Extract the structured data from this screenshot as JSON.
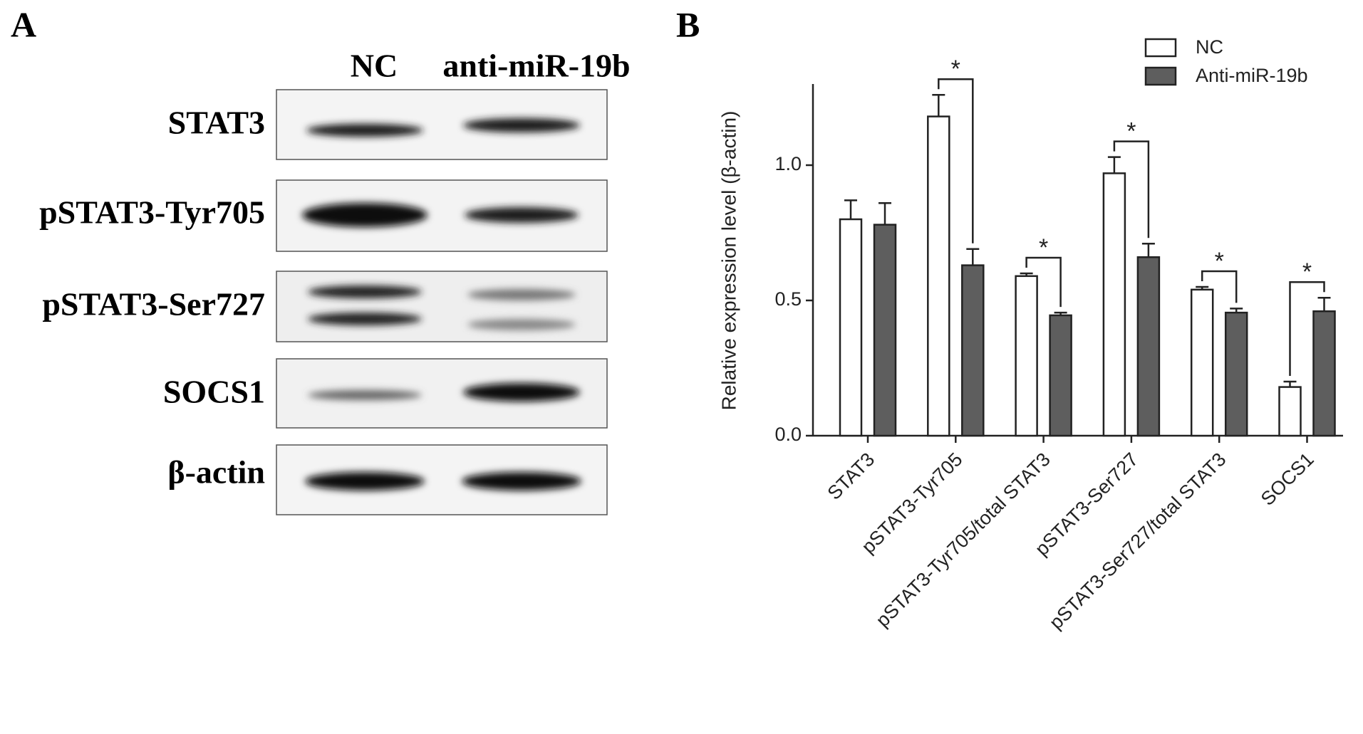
{
  "panel_a": {
    "label": "A",
    "lanes": [
      "NC",
      "anti-miR-19b"
    ],
    "rows": [
      "STAT3",
      "pSTAT3-Tyr705",
      "pSTAT3-Ser727",
      "SOCS1",
      "β-actin"
    ]
  },
  "chart_data": {
    "type": "bar",
    "panel_label": "B",
    "y_label": "Relative expression level (β-actin)",
    "categories": [
      "STAT3",
      "pSTAT3-Tyr705",
      "pSTAT3-Tyr705/total STAT3",
      "pSTAT3-Ser727",
      "pSTAT3-Ser727/total STAT3",
      "SOCS1"
    ],
    "series": [
      {
        "name": "NC",
        "color": "#ffffff",
        "values": [
          0.8,
          1.18,
          0.59,
          0.97,
          0.54,
          0.18
        ],
        "errors": [
          0.07,
          0.08,
          0.01,
          0.06,
          0.01,
          0.02
        ]
      },
      {
        "name": "Anti-miR-19b",
        "color": "#5e5e5e",
        "values": [
          0.78,
          0.63,
          0.445,
          0.66,
          0.455,
          0.46
        ],
        "errors": [
          0.08,
          0.06,
          0.01,
          0.05,
          0.015,
          0.05
        ]
      }
    ],
    "ylim": [
      0,
      1.3
    ],
    "yticks": [
      {
        "value": 0,
        "label": "0.0"
      },
      {
        "value": 0.5,
        "label": "0.5"
      },
      {
        "value": 1,
        "label": "1.0"
      }
    ],
    "legend": "top-right",
    "annotations": [
      {
        "category": "pSTAT3-Tyr705",
        "text": "*"
      },
      {
        "category": "pSTAT3-Tyr705/total STAT3",
        "text": "*"
      },
      {
        "category": "pSTAT3-Ser727",
        "text": "*"
      },
      {
        "category": "pSTAT3-Ser727/total STAT3",
        "text": "*"
      },
      {
        "category": "SOCS1",
        "text": "*"
      }
    ]
  }
}
